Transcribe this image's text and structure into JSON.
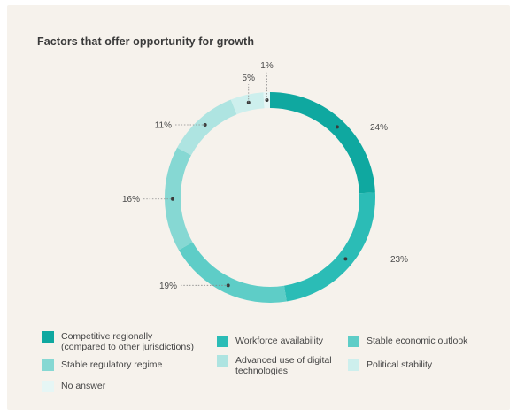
{
  "chart_data": {
    "type": "pie",
    "title": "Factors that offer opportunity for growth",
    "categories": [
      "Competitive regionally\n(compared to other jurisdictions)",
      "Workforce availability",
      "Stable economic outlook",
      "Stable regulatory regime",
      "Advanced use of digital\ntechnologies",
      "Political stability",
      "No answer"
    ],
    "values": [
      24,
      23,
      19,
      16,
      11,
      5,
      1
    ],
    "value_labels": [
      "24%",
      "23%",
      "19%",
      "16%",
      "11%",
      "5%",
      "1%"
    ],
    "colors": [
      "#0fa8a0",
      "#2bbcb6",
      "#5ecdc7",
      "#86d8d3",
      "#aee4e1",
      "#cdefed",
      "#e6f6f5"
    ],
    "style": "donut",
    "legend_position": "bottom"
  }
}
